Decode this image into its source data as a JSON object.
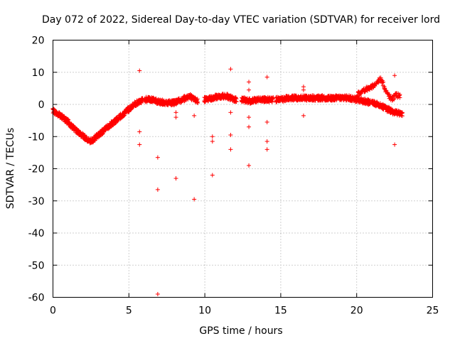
{
  "chart_data": {
    "type": "scatter",
    "title": "Day 072 of 2022, Sidereal Day-to-day VTEC variation (SDTVAR) for receiver lord",
    "xlabel": "GPS time / hours",
    "ylabel": "SDTVAR / TECUs",
    "xlim": [
      0,
      25
    ],
    "ylim": [
      -60,
      20
    ],
    "xticks": [
      0,
      5,
      10,
      15,
      20,
      25
    ],
    "yticks": [
      -60,
      -50,
      -40,
      -30,
      -20,
      -10,
      0,
      10,
      20
    ],
    "xtick_labels": [
      "0",
      "5",
      "10",
      "15",
      "20",
      "25"
    ],
    "ytick_labels": [
      "-60",
      "-50",
      "-40",
      "-30",
      "-20",
      "-10",
      "0",
      "10",
      "20"
    ],
    "grid": true,
    "marker": "+",
    "color": "#ff0000",
    "series": [
      {
        "name": "SDTVAR",
        "curve_nodes": [
          [
            0.0,
            -2.0
          ],
          [
            0.5,
            -3.5
          ],
          [
            1.0,
            -5.5
          ],
          [
            1.5,
            -8.0
          ],
          [
            2.0,
            -10.0
          ],
          [
            2.5,
            -11.5
          ],
          [
            3.0,
            -9.5
          ],
          [
            3.5,
            -7.5
          ],
          [
            4.0,
            -5.5
          ],
          [
            4.5,
            -3.5
          ],
          [
            5.0,
            -1.5
          ],
          [
            5.5,
            0.5
          ],
          [
            6.0,
            1.5
          ],
          [
            6.5,
            1.5
          ],
          [
            7.0,
            0.8
          ],
          [
            7.5,
            0.5
          ],
          [
            8.0,
            0.5
          ],
          [
            8.5,
            1.5
          ],
          [
            9.0,
            2.5
          ],
          [
            9.5,
            1.0
          ],
          [
            10.0,
            1.5
          ],
          [
            10.5,
            2.0
          ],
          [
            11.0,
            2.5
          ],
          [
            11.5,
            2.5
          ],
          [
            12.0,
            1.5
          ],
          [
            12.5,
            1.5
          ],
          [
            13.0,
            1.0
          ],
          [
            13.5,
            1.5
          ],
          [
            14.0,
            1.5
          ],
          [
            14.5,
            1.5
          ],
          [
            15.0,
            1.5
          ],
          [
            15.5,
            2.0
          ],
          [
            16.0,
            2.0
          ],
          [
            16.5,
            2.0
          ],
          [
            17.0,
            2.0
          ],
          [
            17.5,
            2.0
          ],
          [
            18.0,
            2.0
          ],
          [
            18.5,
            2.0
          ],
          [
            19.0,
            2.0
          ],
          [
            19.5,
            2.0
          ],
          [
            20.0,
            1.5
          ],
          [
            20.5,
            1.0
          ],
          [
            21.0,
            0.5
          ],
          [
            21.5,
            0.0
          ],
          [
            22.0,
            -1.5
          ],
          [
            22.5,
            -2.5
          ],
          [
            23.0,
            -3.0
          ]
        ],
        "upper_branch": [
          [
            20.0,
            3.0
          ],
          [
            20.5,
            4.5
          ],
          [
            21.0,
            5.5
          ],
          [
            21.6,
            8.0
          ],
          [
            22.0,
            3.5
          ],
          [
            22.3,
            1.5
          ],
          [
            22.6,
            3.0
          ],
          [
            22.9,
            2.5
          ]
        ],
        "outliers": [
          [
            5.7,
            10.5
          ],
          [
            5.7,
            -8.5
          ],
          [
            5.7,
            -12.5
          ],
          [
            6.9,
            -16.5
          ],
          [
            6.9,
            -26.5
          ],
          [
            6.9,
            -59.0
          ],
          [
            8.1,
            -2.5
          ],
          [
            8.1,
            -4.0
          ],
          [
            8.1,
            -23.0
          ],
          [
            9.3,
            -3.5
          ],
          [
            9.3,
            -29.5
          ],
          [
            10.5,
            -10.0
          ],
          [
            10.5,
            -11.5
          ],
          [
            10.5,
            -22.0
          ],
          [
            11.7,
            11.0
          ],
          [
            11.7,
            -2.5
          ],
          [
            11.7,
            -9.5
          ],
          [
            11.7,
            -14.0
          ],
          [
            12.9,
            7.0
          ],
          [
            12.9,
            4.5
          ],
          [
            12.9,
            -4.0
          ],
          [
            12.9,
            -7.0
          ],
          [
            12.9,
            -19.0
          ],
          [
            14.1,
            8.5
          ],
          [
            14.1,
            -5.5
          ],
          [
            14.1,
            -11.5
          ],
          [
            14.1,
            -14.0
          ],
          [
            16.5,
            5.5
          ],
          [
            16.5,
            4.5
          ],
          [
            16.5,
            -3.5
          ],
          [
            22.5,
            9.0
          ],
          [
            22.5,
            -12.5
          ]
        ]
      }
    ]
  }
}
